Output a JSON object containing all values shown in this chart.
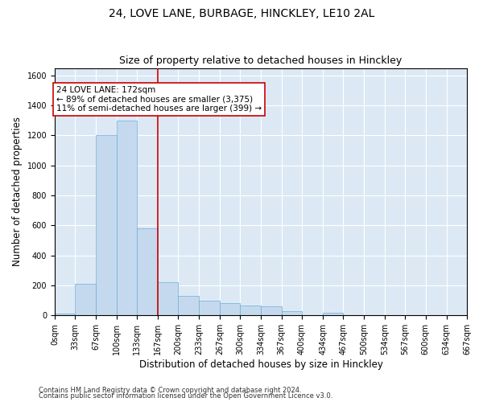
{
  "title": "24, LOVE LANE, BURBAGE, HINCKLEY, LE10 2AL",
  "subtitle": "Size of property relative to detached houses in Hinckley",
  "xlabel": "Distribution of detached houses by size in Hinckley",
  "ylabel": "Number of detached properties",
  "footnote1": "Contains HM Land Registry data © Crown copyright and database right 2024.",
  "footnote2": "Contains public sector information licensed under the Open Government Licence v3.0.",
  "bin_edges": [
    0,
    33,
    67,
    100,
    133,
    167,
    200,
    233,
    267,
    300,
    334,
    367,
    400,
    434,
    467,
    500,
    534,
    567,
    600,
    634,
    667
  ],
  "bar_heights": [
    10,
    210,
    1200,
    1300,
    580,
    220,
    130,
    100,
    80,
    65,
    60,
    30,
    0,
    20,
    0,
    0,
    0,
    0,
    0,
    0
  ],
  "bar_color": "#c5d9ee",
  "bar_edge_color": "#6baed6",
  "vline_x": 167,
  "vline_color": "#cc0000",
  "ylim": [
    0,
    1650
  ],
  "yticks": [
    0,
    200,
    400,
    600,
    800,
    1000,
    1200,
    1400,
    1600
  ],
  "annotation_text": "24 LOVE LANE: 172sqm\n← 89% of detached houses are smaller (3,375)\n11% of semi-detached houses are larger (399) →",
  "annotation_box_color": "#ffffff",
  "annotation_box_edge_color": "#cc0000",
  "plot_bg_color": "#dce9f5",
  "grid_color": "#ffffff",
  "title_fontsize": 10,
  "subtitle_fontsize": 9,
  "tick_fontsize": 7,
  "label_fontsize": 8.5,
  "annotation_fontsize": 7.5,
  "footnote_fontsize": 6
}
